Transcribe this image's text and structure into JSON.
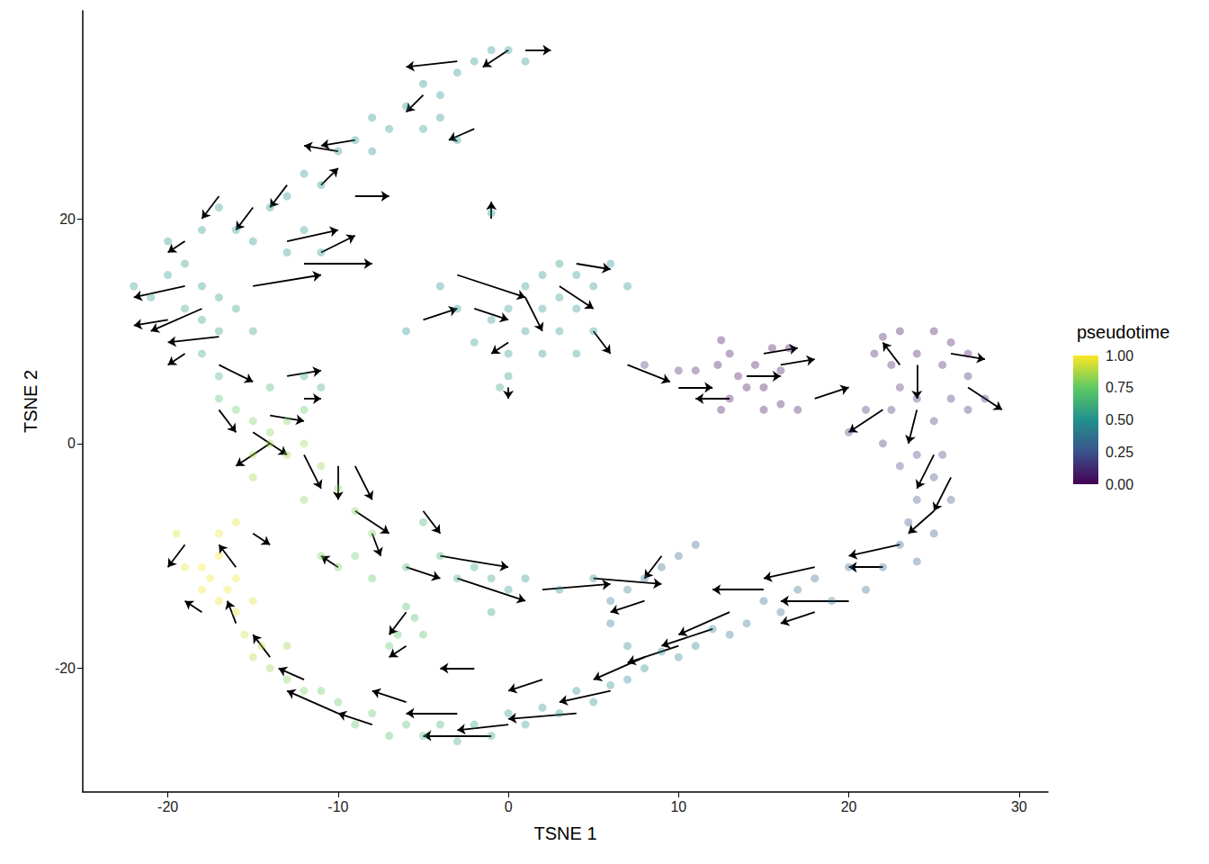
{
  "chart_data": {
    "type": "scatter",
    "x_label": "TSNE 1",
    "y_label": "TSNE 2",
    "xlim": [
      -25,
      31.7
    ],
    "ylim": [
      -31,
      38.5
    ],
    "xticks": [
      -20,
      -10,
      0,
      10,
      20,
      30
    ],
    "yticks": [
      -20,
      0,
      20
    ],
    "grid": false,
    "colorbar": {
      "title": "pseudotime",
      "range": [
        0,
        1
      ],
      "ticks": [
        {
          "value": 0,
          "label": "0.00"
        },
        0.25,
        {
          "value": 0.5,
          "label": "0.50"
        },
        0.75,
        {
          "value": 1,
          "label": "1.00"
        }
      ]
    },
    "points": [
      [
        12.5,
        9.2,
        0.02
      ],
      [
        13,
        8,
        0.03
      ],
      [
        12.3,
        7,
        0.02
      ],
      [
        13.5,
        6,
        0.04
      ],
      [
        14,
        5,
        0.03
      ],
      [
        13,
        4,
        0.02
      ],
      [
        15,
        3,
        0.03
      ],
      [
        16,
        3.5,
        0.04
      ],
      [
        17,
        3,
        0.05
      ],
      [
        15.5,
        8.5,
        0.03
      ],
      [
        16.5,
        8.5,
        0.04
      ],
      [
        14.5,
        7,
        0.02
      ],
      [
        16,
        6.5,
        0.03
      ],
      [
        15,
        5,
        0.02
      ],
      [
        12.5,
        3,
        0.03
      ],
      [
        11,
        6.5,
        0.08
      ],
      [
        10,
        6.5,
        0.1
      ],
      [
        8,
        7,
        0.15
      ],
      [
        22,
        9.5,
        0.05
      ],
      [
        23,
        10,
        0.04
      ],
      [
        25,
        10,
        0.03
      ],
      [
        26,
        9,
        0.05
      ],
      [
        27,
        8,
        0.06
      ],
      [
        24,
        8,
        0.06
      ],
      [
        21.5,
        8,
        0.08
      ],
      [
        22.5,
        7,
        0.07
      ],
      [
        25.5,
        7,
        0.06
      ],
      [
        27,
        6,
        0.1
      ],
      [
        23,
        5,
        0.1
      ],
      [
        24,
        4,
        0.12
      ],
      [
        26,
        4,
        0.1
      ],
      [
        21,
        3,
        0.12
      ],
      [
        22.5,
        3,
        0.12
      ],
      [
        25,
        2,
        0.14
      ],
      [
        27,
        3,
        0.12
      ],
      [
        28,
        4,
        0.12
      ],
      [
        20,
        1,
        0.14
      ],
      [
        22,
        0,
        0.15
      ],
      [
        24,
        -1,
        0.18
      ],
      [
        25.5,
        -1,
        0.18
      ],
      [
        23,
        -2,
        0.2
      ],
      [
        25,
        -3,
        0.22
      ],
      [
        24,
        -5,
        0.25
      ],
      [
        26,
        -5,
        0.24
      ],
      [
        23.5,
        -7,
        0.26
      ],
      [
        25,
        -8,
        0.27
      ],
      [
        23,
        -9,
        0.28
      ],
      [
        24,
        -10.5,
        0.3
      ],
      [
        22,
        -11,
        0.3
      ],
      [
        20,
        -11,
        0.32
      ],
      [
        21,
        -13,
        0.33
      ],
      [
        18,
        -12,
        0.33
      ],
      [
        19,
        -14,
        0.35
      ],
      [
        17,
        -13,
        0.35
      ],
      [
        16,
        -15,
        0.36
      ],
      [
        15,
        -14,
        0.36
      ],
      [
        14,
        -16,
        0.38
      ],
      [
        13,
        -17,
        0.38
      ],
      [
        12,
        -16.5,
        0.4
      ],
      [
        11,
        -18,
        0.42
      ],
      [
        10,
        -19,
        0.44
      ],
      [
        9,
        -18.5,
        0.44
      ],
      [
        8,
        -20,
        0.46
      ],
      [
        7,
        -21,
        0.46
      ],
      [
        6,
        -21.5,
        0.47
      ],
      [
        5,
        -23,
        0.48
      ],
      [
        4,
        -22,
        0.48
      ],
      [
        3,
        -24,
        0.5
      ],
      [
        2,
        -23.5,
        0.5
      ],
      [
        1,
        -25,
        0.52
      ],
      [
        0,
        -24,
        0.53
      ],
      [
        -1,
        -26,
        0.55
      ],
      [
        -2,
        -25,
        0.57
      ],
      [
        -3,
        -26.5,
        0.6
      ],
      [
        -4,
        -25,
        0.62
      ],
      [
        -5,
        -26,
        0.65
      ],
      [
        -6,
        -25,
        0.68
      ],
      [
        -7,
        -26,
        0.7
      ],
      [
        -8,
        -24,
        0.72
      ],
      [
        -9,
        -25,
        0.72
      ],
      [
        -10,
        -23,
        0.74
      ],
      [
        -11,
        -22,
        0.76
      ],
      [
        -12,
        -22,
        0.78
      ],
      [
        -13,
        -21,
        0.8
      ],
      [
        -14,
        -20,
        0.84
      ],
      [
        -15,
        -19,
        0.88
      ],
      [
        -14.5,
        -18,
        0.9
      ],
      [
        -15.5,
        -17,
        0.92
      ],
      [
        -16,
        -15,
        0.95
      ],
      [
        -17,
        -14,
        0.97
      ],
      [
        -16.5,
        -13,
        0.98
      ],
      [
        -17.5,
        -12,
        0.99
      ],
      [
        -18,
        -11,
        1.0
      ],
      [
        -17,
        -10,
        1.0
      ],
      [
        -17,
        -8,
        0.98
      ],
      [
        -16,
        -7,
        0.96
      ],
      [
        -19.5,
        -8,
        0.95
      ],
      [
        -19,
        -11,
        0.96
      ],
      [
        -18,
        -13,
        0.98
      ],
      [
        -16,
        -12,
        0.98
      ],
      [
        -15,
        -14,
        0.95
      ],
      [
        -13,
        -18,
        0.85
      ],
      [
        11,
        -9,
        0.3
      ],
      [
        10,
        -10,
        0.32
      ],
      [
        9,
        -11,
        0.35
      ],
      [
        8,
        -12,
        0.38
      ],
      [
        7,
        -13,
        0.4
      ],
      [
        6,
        -14,
        0.42
      ],
      [
        6,
        -16,
        0.42
      ],
      [
        7,
        -18,
        0.44
      ],
      [
        5,
        -12,
        0.45
      ],
      [
        3,
        -13,
        0.47
      ],
      [
        1,
        -12,
        0.5
      ],
      [
        0,
        -13,
        0.52
      ],
      [
        -1,
        -12,
        0.55
      ],
      [
        -2,
        -11,
        0.58
      ],
      [
        -3,
        -12,
        0.6
      ],
      [
        -4,
        -10,
        0.62
      ],
      [
        -5,
        -7,
        0.64
      ],
      [
        -6,
        -11,
        0.66
      ],
      [
        -8,
        -12,
        0.72
      ],
      [
        -9,
        -10,
        0.76
      ],
      [
        -10,
        -11,
        0.78
      ],
      [
        -11,
        -10,
        0.8
      ],
      [
        -1,
        -15,
        0.55
      ],
      [
        -6,
        -14.5,
        0.7
      ],
      [
        -5.5,
        -15.5,
        0.7
      ],
      [
        -6.5,
        -17,
        0.72
      ],
      [
        -7,
        -18,
        0.72
      ],
      [
        -5,
        -17,
        0.7
      ],
      [
        -8,
        -8,
        0.78
      ],
      [
        -9,
        -6,
        0.8
      ],
      [
        -10,
        -4,
        0.82
      ],
      [
        -12,
        -5,
        0.82
      ],
      [
        -11,
        -2,
        0.84
      ],
      [
        -13,
        -1,
        0.84
      ],
      [
        -12,
        0,
        0.85
      ],
      [
        -14,
        0,
        0.86
      ],
      [
        -15,
        -1,
        0.86
      ],
      [
        -15,
        -3,
        0.85
      ],
      [
        -14,
        1,
        0.82
      ],
      [
        -13,
        2,
        0.8
      ],
      [
        -15,
        2,
        0.78
      ],
      [
        -16,
        3,
        0.75
      ],
      [
        -17,
        4,
        0.7
      ],
      [
        -12,
        3,
        0.75
      ],
      [
        -11,
        5,
        0.6
      ],
      [
        -12,
        6,
        0.6
      ],
      [
        -14,
        5,
        0.65
      ],
      [
        -17,
        6,
        0.62
      ],
      [
        -18,
        8,
        0.58
      ],
      [
        -17,
        10,
        0.55
      ],
      [
        -18,
        11,
        0.55
      ],
      [
        -19,
        12,
        0.55
      ],
      [
        -21,
        13,
        0.54
      ],
      [
        -22,
        14,
        0.54
      ],
      [
        -20,
        15,
        0.53
      ],
      [
        -18,
        14,
        0.54
      ],
      [
        -17,
        13,
        0.54
      ],
      [
        -16,
        12,
        0.55
      ],
      [
        -15,
        10,
        0.55
      ],
      [
        -19,
        16,
        0.53
      ],
      [
        -20,
        18,
        0.52
      ],
      [
        -18,
        19,
        0.52
      ],
      [
        -16,
        19,
        0.52
      ],
      [
        -15,
        18,
        0.52
      ],
      [
        -17,
        21,
        0.52
      ],
      [
        -14,
        21,
        0.52
      ],
      [
        -13,
        22,
        0.5
      ],
      [
        -12,
        24,
        0.5
      ],
      [
        -11,
        23,
        0.5
      ],
      [
        -10,
        26,
        0.5
      ],
      [
        -9,
        27,
        0.5
      ],
      [
        -8,
        26,
        0.5
      ],
      [
        -7,
        28,
        0.5
      ],
      [
        -8,
        29,
        0.5
      ],
      [
        -6,
        30,
        0.5
      ],
      [
        -5,
        32,
        0.5
      ],
      [
        -4,
        31,
        0.5
      ],
      [
        -3,
        33,
        0.5
      ],
      [
        -2,
        34,
        0.5
      ],
      [
        -1,
        35,
        0.5
      ],
      [
        0,
        35,
        0.5
      ],
      [
        1,
        34,
        0.5
      ],
      [
        -4,
        29,
        0.5
      ],
      [
        -5,
        28,
        0.52
      ],
      [
        -3,
        27,
        0.52
      ],
      [
        -12,
        19,
        0.52
      ],
      [
        -11,
        17,
        0.52
      ],
      [
        -13,
        17,
        0.52
      ],
      [
        3,
        16,
        0.52
      ],
      [
        4,
        15,
        0.52
      ],
      [
        2,
        15,
        0.52
      ],
      [
        1,
        14,
        0.52
      ],
      [
        3,
        13,
        0.52
      ],
      [
        5,
        14,
        0.52
      ],
      [
        0,
        12,
        0.52
      ],
      [
        2,
        12,
        0.52
      ],
      [
        4,
        12,
        0.52
      ],
      [
        -1,
        11,
        0.52
      ],
      [
        1,
        10,
        0.52
      ],
      [
        3,
        10,
        0.52
      ],
      [
        5,
        10,
        0.52
      ],
      [
        -2,
        9,
        0.52
      ],
      [
        0,
        8,
        0.52
      ],
      [
        2,
        8,
        0.52
      ],
      [
        4,
        8,
        0.52
      ],
      [
        -3,
        12,
        0.5
      ],
      [
        -4,
        14,
        0.5
      ],
      [
        0,
        6,
        0.52
      ],
      [
        -0.5,
        5,
        0.55
      ],
      [
        -6,
        10,
        0.5
      ],
      [
        -1,
        20.5,
        0.5
      ],
      [
        6,
        16,
        0.5
      ],
      [
        7,
        14,
        0.5
      ]
    ],
    "arrows": [
      [
        -3,
        34,
        -6,
        33.5
      ],
      [
        0,
        35,
        -1.5,
        33.5
      ],
      [
        1,
        35,
        2.5,
        35
      ],
      [
        -5,
        31,
        -6,
        29.5
      ],
      [
        -2,
        28,
        -3.5,
        27
      ],
      [
        -9,
        27,
        -11,
        26.5
      ],
      [
        -10,
        26,
        -12,
        26.5
      ],
      [
        -13,
        23,
        -14,
        21
      ],
      [
        -15,
        21,
        -16,
        19
      ],
      [
        -17,
        22,
        -18,
        20
      ],
      [
        -19,
        18,
        -20,
        17
      ],
      [
        -11,
        23,
        -10,
        24.5
      ],
      [
        -9,
        22,
        -7,
        22
      ],
      [
        -13,
        18,
        -10,
        19
      ],
      [
        -12,
        16,
        -8,
        16
      ],
      [
        -15,
        14,
        -11,
        15
      ],
      [
        -11,
        17,
        -9,
        18.5
      ],
      [
        -19,
        14,
        -22,
        13
      ],
      [
        -18,
        12,
        -21,
        10
      ],
      [
        -17,
        9.5,
        -20,
        9
      ],
      [
        -20,
        11,
        -22,
        10.5
      ],
      [
        -19,
        8,
        -20,
        7
      ],
      [
        -17,
        7,
        -15,
        5.5
      ],
      [
        -13,
        6,
        -11,
        6.5
      ],
      [
        -12,
        4,
        -11,
        4
      ],
      [
        -14,
        2.5,
        -12,
        2
      ],
      [
        -17,
        3,
        -16,
        1
      ],
      [
        -15,
        1,
        -13,
        -1
      ],
      [
        -14,
        0,
        -16,
        -2
      ],
      [
        -12,
        -1,
        -11,
        -4
      ],
      [
        -10,
        -2,
        -10,
        -5
      ],
      [
        -9,
        -2,
        -8,
        -5
      ],
      [
        -9,
        -6,
        -7,
        -8
      ],
      [
        -8,
        -8,
        -7.5,
        -10
      ],
      [
        -10,
        -11,
        -11,
        -10
      ],
      [
        -5,
        -6,
        -4,
        -8
      ],
      [
        -4,
        -10,
        0,
        -11
      ],
      [
        -3,
        -12,
        1,
        -14
      ],
      [
        -6,
        -11,
        -4,
        -12
      ],
      [
        2,
        -13,
        6,
        -12.5
      ],
      [
        5,
        -12,
        9,
        -12.5
      ],
      [
        8,
        -14,
        6,
        -15
      ],
      [
        9,
        -10,
        8,
        -12
      ],
      [
        -6,
        -15,
        -7,
        -17
      ],
      [
        7,
        7,
        9.5,
        5.5
      ],
      [
        10,
        5,
        12,
        5
      ],
      [
        13,
        4,
        11,
        4
      ],
      [
        14,
        6,
        16,
        6
      ],
      [
        16,
        7,
        18,
        7.5
      ],
      [
        18,
        4,
        20,
        5
      ],
      [
        15,
        8,
        17,
        8.5
      ],
      [
        22,
        3,
        20,
        1
      ],
      [
        23,
        7,
        22,
        9
      ],
      [
        24,
        7,
        24,
        4
      ],
      [
        26,
        8,
        28,
        7.5
      ],
      [
        27,
        5,
        29,
        3
      ],
      [
        24,
        3,
        23.5,
        0
      ],
      [
        25,
        -1,
        24,
        -4
      ],
      [
        26,
        -3,
        25,
        -6
      ],
      [
        25,
        -6,
        23.5,
        -8
      ],
      [
        23,
        -9,
        20,
        -10
      ],
      [
        22,
        -11,
        20,
        -11
      ],
      [
        18,
        -11,
        15,
        -12
      ],
      [
        20,
        -14,
        16,
        -14
      ],
      [
        15,
        -13,
        12,
        -13
      ],
      [
        18,
        -15,
        16,
        -16
      ],
      [
        13,
        -15,
        10,
        -17
      ],
      [
        12,
        -16.5,
        9,
        -18
      ],
      [
        10,
        -18,
        7,
        -19.5
      ],
      [
        8,
        -19,
        5,
        -21
      ],
      [
        6,
        -22,
        3,
        -23
      ],
      [
        4,
        -24,
        0,
        -24.5
      ],
      [
        2,
        -21,
        0,
        -22
      ],
      [
        0,
        -25,
        -3,
        -25.5
      ],
      [
        -1,
        -26,
        -5,
        -26
      ],
      [
        -3,
        -24,
        -6,
        -24
      ],
      [
        -2,
        -20,
        -4,
        -20
      ],
      [
        -6,
        -23,
        -8,
        -22
      ],
      [
        -8,
        -25,
        -10,
        -24
      ],
      [
        -10,
        -24,
        -13,
        -22
      ],
      [
        -12,
        -21,
        -13.5,
        -20
      ],
      [
        -14,
        -19,
        -15,
        -17
      ],
      [
        -16,
        -16,
        -16.5,
        -14
      ],
      [
        -18,
        -15,
        -19,
        -14
      ],
      [
        -16,
        -11,
        -17,
        -9
      ],
      [
        -19,
        -9,
        -20,
        -11
      ],
      [
        -15,
        -8,
        -14,
        -9
      ],
      [
        -6,
        -18,
        -7,
        -19
      ],
      [
        -3,
        15,
        1,
        13
      ],
      [
        -2,
        12,
        0,
        11
      ],
      [
        -5,
        11,
        -3,
        12
      ],
      [
        1,
        13,
        2,
        10
      ],
      [
        3,
        14,
        5,
        12
      ],
      [
        4,
        16,
        6,
        15.5
      ],
      [
        0,
        9,
        -1,
        8
      ],
      [
        5,
        10,
        6,
        8
      ],
      [
        0,
        5,
        0,
        4
      ],
      [
        -1,
        20,
        -1,
        21.5
      ]
    ]
  }
}
